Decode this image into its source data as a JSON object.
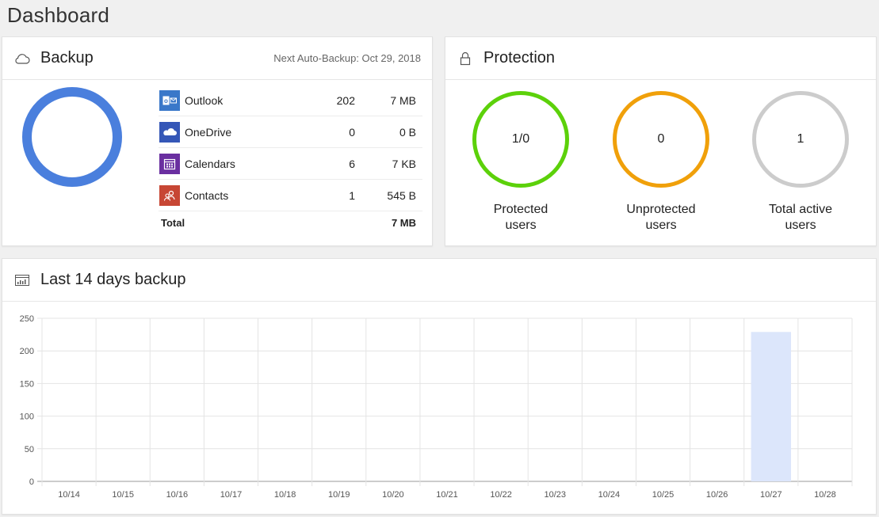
{
  "page": {
    "title": "Dashboard"
  },
  "backup": {
    "title": "Backup",
    "next_auto_backup": "Next Auto-Backup: Oct 29, 2018",
    "icon": "cloud-icon",
    "donut_color": "#4a7fdd",
    "items": [
      {
        "name": "Outlook",
        "count": "202",
        "size": "7 MB",
        "icon": "outlook-icon",
        "color": "#3a78c9"
      },
      {
        "name": "OneDrive",
        "count": "0",
        "size": "0 B",
        "icon": "onedrive-icon",
        "color": "#3557b7"
      },
      {
        "name": "Calendars",
        "count": "6",
        "size": "7 KB",
        "icon": "calendar-icon",
        "color": "#6a2fa0"
      },
      {
        "name": "Contacts",
        "count": "1",
        "size": "545 B",
        "icon": "contacts-icon",
        "color": "#c74634"
      }
    ],
    "total": {
      "label": "Total",
      "size": "7 MB"
    }
  },
  "protection": {
    "title": "Protection",
    "icon": "lock-icon",
    "stats": [
      {
        "value": "1/0",
        "label_line1": "Protected",
        "label_line2": "users",
        "color": "#5cd10a"
      },
      {
        "value": "0",
        "label_line1": "Unprotected",
        "label_line2": "users",
        "color": "#f0a00a"
      },
      {
        "value": "1",
        "label_line1": "Total active",
        "label_line2": "users",
        "color": "#cccccc"
      }
    ]
  },
  "chart": {
    "title": "Last 14 days backup",
    "icon": "chart-icon"
  },
  "chart_data": {
    "type": "bar",
    "title": "Last 14 days backup",
    "categories": [
      "10/14",
      "10/15",
      "10/16",
      "10/17",
      "10/18",
      "10/19",
      "10/20",
      "10/21",
      "10/22",
      "10/23",
      "10/24",
      "10/25",
      "10/26",
      "10/27",
      "10/28"
    ],
    "values": [
      0,
      0,
      0,
      0,
      0,
      0,
      0,
      0,
      0,
      0,
      0,
      0,
      0,
      229,
      0
    ],
    "ylim": [
      0,
      250
    ],
    "yticks": [
      "0",
      "50",
      "100",
      "150",
      "200",
      "250"
    ],
    "grid": true,
    "bar_color": "#dce6fb",
    "xlabel": "",
    "ylabel": ""
  }
}
